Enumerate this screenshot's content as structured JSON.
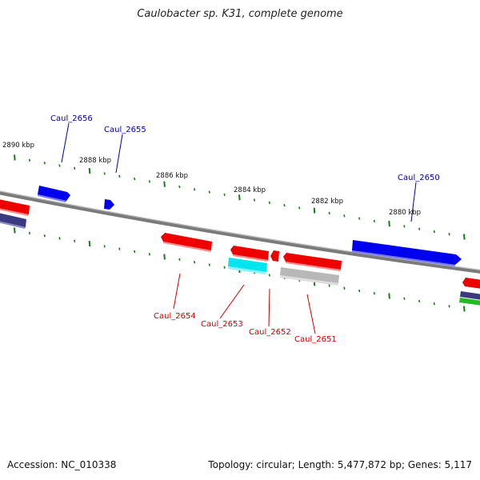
{
  "title": "Caulobacter sp. K31, complete genome",
  "footer": {
    "accession": "Accession: NC_010338",
    "summary": "Topology: circular; Length: 5,477,872 bp; Genes: 5,117"
  },
  "colors": {
    "forward_gene": "#0000ee",
    "reverse_gene": "#ee0000",
    "forward_label": "#000099",
    "reverse_label": "#cc0000",
    "tick": "#1a7a1a",
    "backbone": "#7a7a7a",
    "rna_gene": "#00e5ee",
    "pseudo_gene": "#b8b8b8",
    "other_gene": "#3a3a80",
    "green_gene": "#22bb22"
  },
  "kbp_labels": [
    "2890 kbp",
    "2888 kbp",
    "2886 kbp",
    "2884 kbp",
    "2882 kbp",
    "2880 kbp"
  ],
  "gene_labels": {
    "forward": [
      "Caul_2656",
      "Caul_2655",
      "Caul_2650"
    ],
    "reverse": [
      "Caul_2654",
      "Caul_2653",
      "Caul_2652",
      "Caul_2651"
    ]
  }
}
